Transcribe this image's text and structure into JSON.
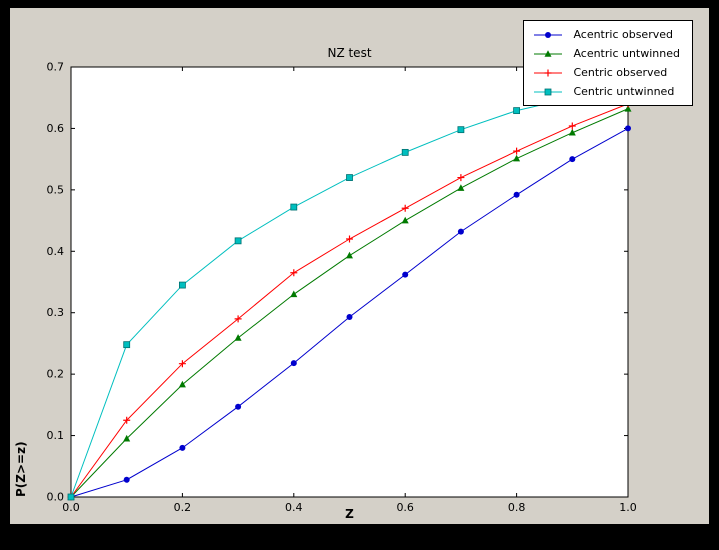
{
  "window": {
    "background": "#000000",
    "figure_background": "#d4d0c8",
    "plot_background": "#ffffff"
  },
  "chart_data": {
    "type": "line",
    "title": "NZ test",
    "xlabel": "Z",
    "ylabel": "P(Z>=z)",
    "xlim": [
      0.0,
      1.0
    ],
    "ylim": [
      0.0,
      0.7
    ],
    "xticks": [
      0.0,
      0.2,
      0.4,
      0.6,
      0.8,
      1.0
    ],
    "yticks": [
      0.0,
      0.1,
      0.2,
      0.3,
      0.4,
      0.5,
      0.6,
      0.7
    ],
    "grid": false,
    "legend_position": "upper right",
    "x": [
      0.0,
      0.1,
      0.2,
      0.3,
      0.4,
      0.5,
      0.6,
      0.7,
      0.8,
      0.9,
      1.0
    ],
    "series": [
      {
        "name": "Acentric observed",
        "color": "#0000cd",
        "marker": "circle",
        "values": [
          0.0,
          0.028,
          0.08,
          0.147,
          0.218,
          0.293,
          0.362,
          0.432,
          0.492,
          0.55,
          0.6
        ]
      },
      {
        "name": "Acentric untwinned",
        "color": "#007a00",
        "marker": "triangle",
        "values": [
          0.0,
          0.095,
          0.183,
          0.259,
          0.33,
          0.393,
          0.45,
          0.503,
          0.551,
          0.593,
          0.632
        ]
      },
      {
        "name": "Centric observed",
        "color": "#ff0000",
        "marker": "plus",
        "values": [
          0.0,
          0.125,
          0.217,
          0.29,
          0.365,
          0.42,
          0.47,
          0.52,
          0.563,
          0.604,
          0.64
        ]
      },
      {
        "name": "Centric untwinned",
        "color": "#00bfbf",
        "marker": "square",
        "edge_color": "#007070",
        "values": [
          0.0,
          0.248,
          0.345,
          0.417,
          0.472,
          0.52,
          0.561,
          0.598,
          0.629,
          0.65,
          0.66
        ]
      }
    ]
  }
}
